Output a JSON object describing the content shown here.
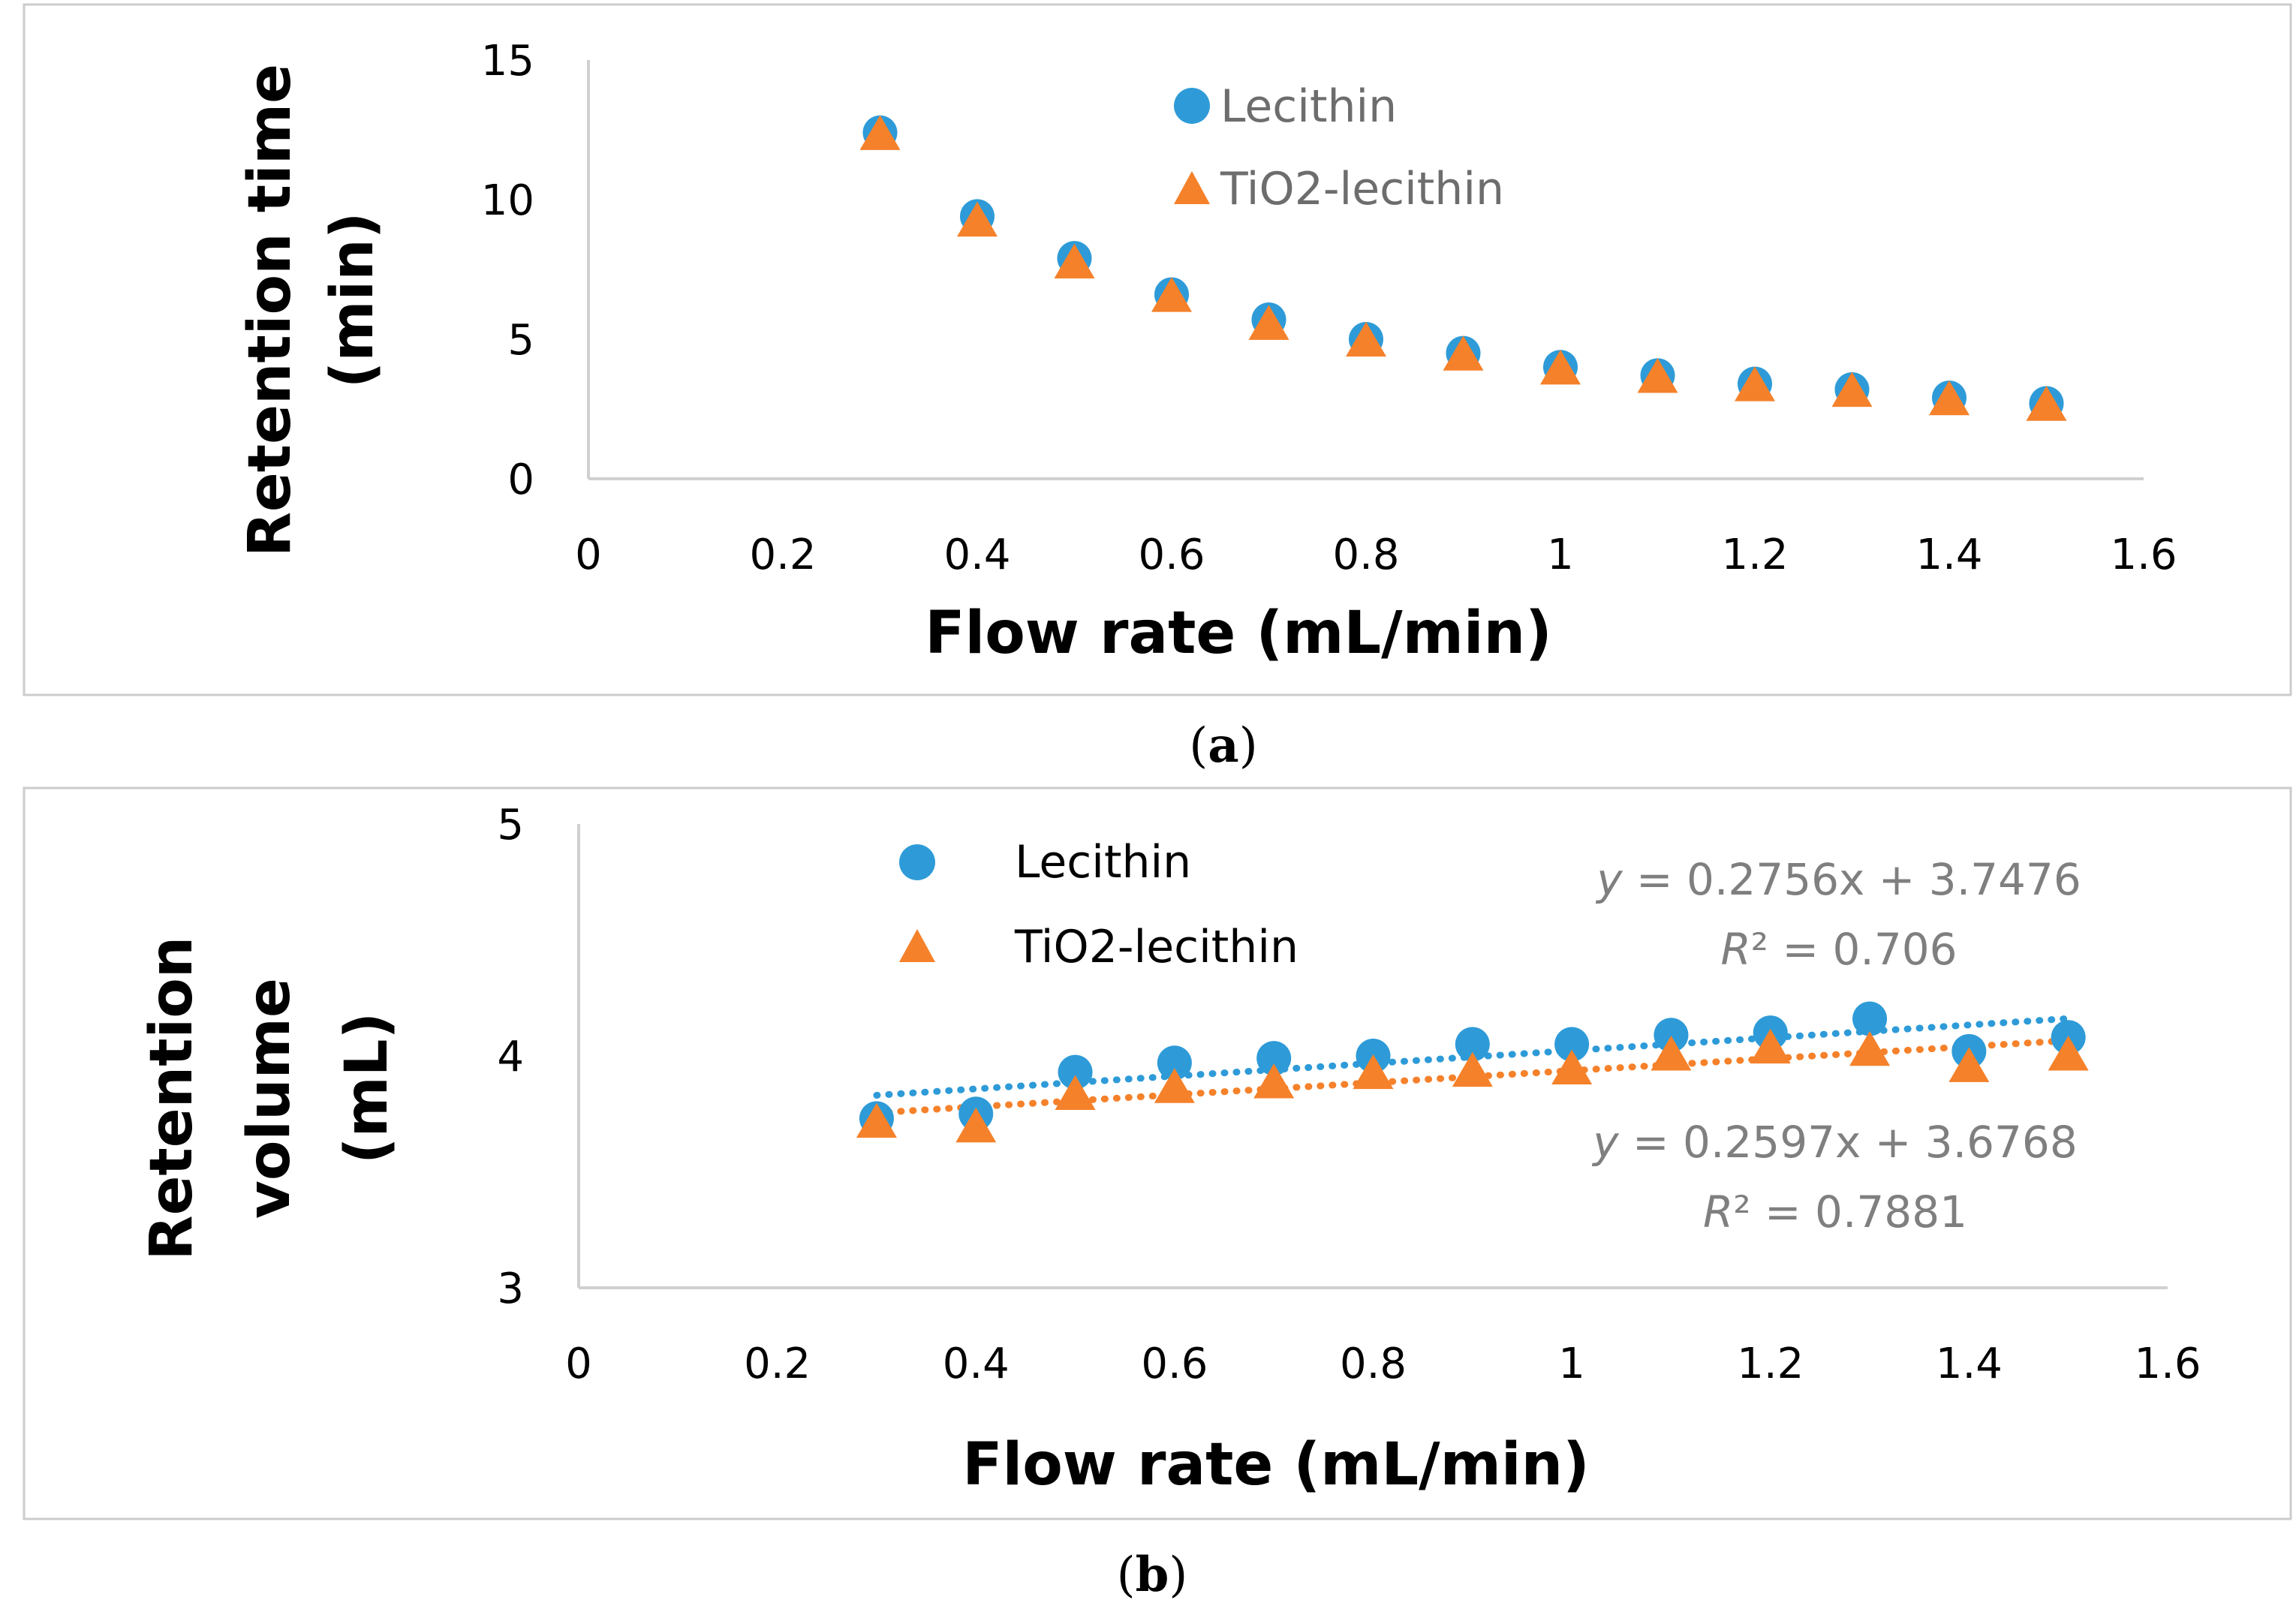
{
  "colors": {
    "lecithin": "#2e9bd8",
    "tio2": "#f5812a",
    "axis": "#d0d0d0",
    "frame": "#cccccc",
    "legend_gray": "#6d6d6d",
    "eq": "#7f7f7f"
  },
  "chart_data": [
    {
      "type": "scatter",
      "title": "",
      "caption": {
        "open": "(",
        "letter": "a",
        "close": ")"
      },
      "xlabel": "Flow rate (mL/min)",
      "ylabel_lines": [
        "Retention time",
        "(min)"
      ],
      "xlim": [
        0,
        1.6
      ],
      "ylim": [
        0,
        15
      ],
      "xticks": [
        0,
        0.2,
        0.4,
        0.6,
        0.8,
        1,
        1.2,
        1.4,
        1.6
      ],
      "xtick_labels": [
        "0",
        "0.2",
        "0.4",
        "0.6",
        "0.8",
        "1",
        "1.2",
        "1.4",
        "1.6"
      ],
      "yticks": [
        0,
        5,
        10,
        15
      ],
      "ytick_labels": [
        "0",
        "5",
        "10",
        "15"
      ],
      "legend_position": "top-center",
      "series": [
        {
          "name": "Lecithin",
          "marker": "circle",
          "color": "#2e9bd8",
          "x": [
            0.3,
            0.4,
            0.5,
            0.6,
            0.7,
            0.8,
            0.9,
            1.0,
            1.1,
            1.2,
            1.3,
            1.4,
            1.5
          ],
          "y": [
            12.4,
            9.4,
            7.9,
            6.6,
            5.7,
            5.0,
            4.5,
            4.0,
            3.7,
            3.4,
            3.2,
            2.9,
            2.7
          ]
        },
        {
          "name": "TiO2-lecithin",
          "marker": "triangle",
          "color": "#f5812a",
          "x": [
            0.3,
            0.4,
            0.5,
            0.6,
            0.7,
            0.8,
            0.9,
            1.0,
            1.1,
            1.2,
            1.3,
            1.4,
            1.5
          ],
          "y": [
            12.3,
            9.2,
            7.7,
            6.5,
            5.5,
            4.9,
            4.4,
            3.9,
            3.6,
            3.3,
            3.1,
            2.8,
            2.6
          ]
        }
      ]
    },
    {
      "type": "scatter",
      "title": "",
      "caption": {
        "open": "(",
        "letter": "b",
        "close": ")"
      },
      "xlabel": "Flow rate  (mL/min)",
      "ylabel_lines": [
        "Retention",
        "volume",
        "(mL)"
      ],
      "xlim": [
        0,
        1.6
      ],
      "ylim": [
        3,
        5
      ],
      "xticks": [
        0,
        0.2,
        0.4,
        0.6,
        0.8,
        1,
        1.2,
        1.4,
        1.6
      ],
      "xtick_labels": [
        "0",
        "0.2",
        "0.4",
        "0.6",
        "0.8",
        "1",
        "1.2",
        "1.4",
        "1.6"
      ],
      "yticks": [
        3,
        4,
        5
      ],
      "ytick_labels": [
        "3",
        "4",
        "5"
      ],
      "legend_position": "top-left",
      "series": [
        {
          "name": "Lecithin",
          "marker": "circle",
          "color": "#2e9bd8",
          "x": [
            0.3,
            0.4,
            0.5,
            0.6,
            0.7,
            0.8,
            0.9,
            1.0,
            1.1,
            1.2,
            1.3,
            1.4,
            1.5
          ],
          "y": [
            3.73,
            3.75,
            3.93,
            3.97,
            3.99,
            4.0,
            4.05,
            4.05,
            4.09,
            4.1,
            4.16,
            4.02,
            4.08
          ],
          "trendline": {
            "slope": 0.2756,
            "intercept": 3.7476,
            "x_range": [
              0.3,
              1.5
            ],
            "equation": {
              "y": "y",
              "rest": " = 0.2756x + 3.7476"
            },
            "r2": {
              "r": "R",
              "sup": "²",
              "rest": " = 0.706"
            }
          }
        },
        {
          "name": "TiO2-lecithin",
          "marker": "triangle",
          "color": "#f5812a",
          "x": [
            0.3,
            0.4,
            0.5,
            0.6,
            0.7,
            0.8,
            0.9,
            1.0,
            1.1,
            1.2,
            1.3,
            1.4,
            1.5
          ],
          "y": [
            3.71,
            3.69,
            3.83,
            3.86,
            3.88,
            3.92,
            3.93,
            3.94,
            4.0,
            4.03,
            4.02,
            3.95,
            4.0
          ],
          "trendline": {
            "slope": 0.2597,
            "intercept": 3.6768,
            "x_range": [
              0.3,
              1.5
            ],
            "equation": {
              "y": "y",
              "rest": " = 0.2597x + 3.6768"
            },
            "r2": {
              "r": "R",
              "sup": "²",
              "rest": " = 0.7881"
            }
          }
        }
      ]
    }
  ]
}
